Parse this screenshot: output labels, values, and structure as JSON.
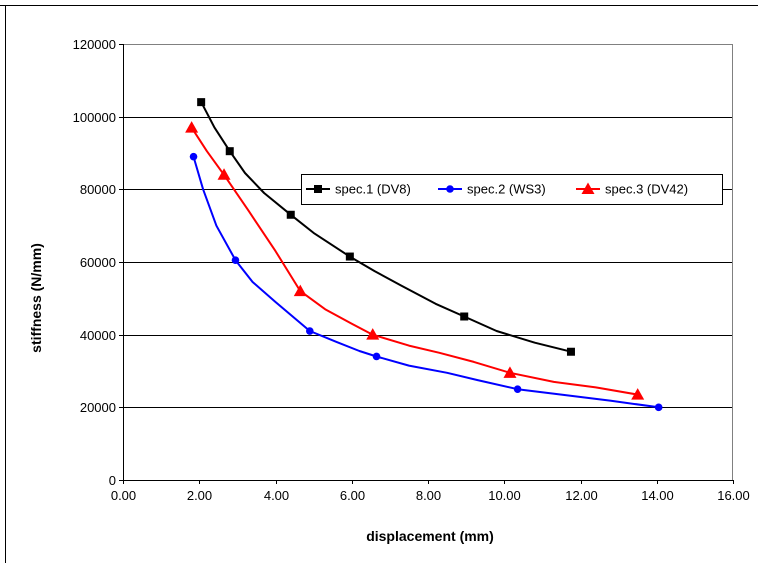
{
  "chart_data": {
    "type": "line",
    "title": "",
    "xlabel": "displacement (mm)",
    "ylabel": "stiffness (N/mm)",
    "xlim": [
      0,
      16
    ],
    "ylim": [
      0,
      120000
    ],
    "x_ticks": [
      "0.00",
      "2.00",
      "4.00",
      "6.00",
      "8.00",
      "10.00",
      "12.00",
      "14.00",
      "16.00"
    ],
    "y_ticks": [
      "0",
      "20000",
      "40000",
      "60000",
      "80000",
      "100000",
      "120000"
    ],
    "grid": "horizontal",
    "legend_position": "right-center",
    "series": [
      {
        "name": "spec.1 (DV8)",
        "color": "#000000",
        "marker": "square",
        "points": [
          [
            2.05,
            104000
          ],
          [
            2.8,
            90500
          ],
          [
            4.4,
            73000
          ],
          [
            5.95,
            61500
          ],
          [
            8.95,
            45000
          ],
          [
            11.75,
            35300
          ]
        ],
        "curve": [
          [
            2.05,
            104000
          ],
          [
            2.4,
            97000
          ],
          [
            2.8,
            90500
          ],
          [
            3.2,
            84500
          ],
          [
            3.7,
            79000
          ],
          [
            4.4,
            73000
          ],
          [
            5.0,
            68000
          ],
          [
            5.95,
            61500
          ],
          [
            6.6,
            57500
          ],
          [
            7.3,
            53500
          ],
          [
            8.2,
            48500
          ],
          [
            8.95,
            45000
          ],
          [
            9.8,
            41000
          ],
          [
            10.8,
            37800
          ],
          [
            11.75,
            35300
          ]
        ]
      },
      {
        "name": "spec.2 (WS3)",
        "color": "#0000ff",
        "marker": "circle",
        "points": [
          [
            1.85,
            89000
          ],
          [
            2.95,
            60500
          ],
          [
            4.9,
            41000
          ],
          [
            6.65,
            34000
          ],
          [
            10.35,
            25000
          ],
          [
            14.05,
            20000
          ]
        ],
        "curve": [
          [
            1.85,
            89000
          ],
          [
            2.1,
            80000
          ],
          [
            2.45,
            70000
          ],
          [
            2.95,
            60500
          ],
          [
            3.4,
            54500
          ],
          [
            4.0,
            49000
          ],
          [
            4.9,
            41000
          ],
          [
            5.6,
            38000
          ],
          [
            6.2,
            35500
          ],
          [
            6.65,
            34000
          ],
          [
            7.5,
            31500
          ],
          [
            8.5,
            29500
          ],
          [
            9.3,
            27500
          ],
          [
            10.35,
            25000
          ],
          [
            11.5,
            23500
          ],
          [
            12.8,
            21800
          ],
          [
            14.05,
            20000
          ]
        ]
      },
      {
        "name": "spec.3 (DV42)",
        "color": "#ff0000",
        "marker": "triangle",
        "points": [
          [
            1.8,
            97000
          ],
          [
            2.65,
            84000
          ],
          [
            4.65,
            52000
          ],
          [
            6.55,
            40000
          ],
          [
            10.15,
            29500
          ],
          [
            13.5,
            23500
          ]
        ],
        "curve": [
          [
            1.8,
            97000
          ],
          [
            2.2,
            90500
          ],
          [
            2.65,
            84000
          ],
          [
            3.3,
            74000
          ],
          [
            4.0,
            63000
          ],
          [
            4.65,
            52000
          ],
          [
            5.3,
            47000
          ],
          [
            6.0,
            43000
          ],
          [
            6.55,
            40000
          ],
          [
            7.5,
            37000
          ],
          [
            8.3,
            35000
          ],
          [
            9.2,
            32500
          ],
          [
            10.15,
            29500
          ],
          [
            11.3,
            27000
          ],
          [
            12.4,
            25500
          ],
          [
            13.5,
            23500
          ]
        ]
      }
    ]
  }
}
